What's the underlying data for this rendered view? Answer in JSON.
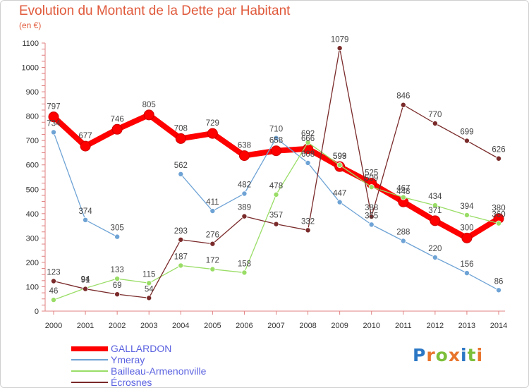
{
  "title": "Evolution du Montant de la Dette par Habitant",
  "subtitle": "(en €)",
  "logo": {
    "letters": [
      "P",
      "r",
      "o",
      "x",
      "i",
      "t",
      "i"
    ],
    "colors": [
      "#2b77c5",
      "#e8742c",
      "#7cbf3a",
      "#e8742c",
      "#2b77c5",
      "#7cbf3a",
      "#e8742c"
    ]
  },
  "chart_data": {
    "type": "line",
    "title": "Evolution du Montant de la Dette par Habitant",
    "ylabel": "(en €)",
    "ylim": [
      0,
      1100
    ],
    "yticks": [
      0,
      100,
      200,
      300,
      400,
      500,
      600,
      700,
      800,
      900,
      1000,
      1100
    ],
    "grid": false,
    "legend_position": "bottom-left",
    "x": [
      "2000",
      "2001",
      "2002",
      "2003",
      "2004",
      "2005",
      "2006",
      "2007",
      "2008",
      "2009",
      "2010",
      "2011",
      "2012",
      "2013",
      "2014"
    ],
    "series": [
      {
        "name": "GALLARDON",
        "color": "#ff0000",
        "values": [
          797,
          677,
          746,
          805,
          708,
          729,
          638,
          658,
          666,
          593,
          525,
          448,
          371,
          300,
          380
        ]
      },
      {
        "name": "Ymeray",
        "color": "#6ea3d5",
        "values": [
          734,
          374,
          305,
          null,
          562,
          411,
          482,
          710,
          608,
          447,
          355,
          288,
          220,
          156,
          86
        ]
      },
      {
        "name": "Bailleau-Armenonville",
        "color": "#99dd66",
        "values": [
          46,
          94,
          133,
          115,
          187,
          172,
          158,
          478,
          692,
          599,
          509,
          467,
          434,
          394,
          360
        ]
      },
      {
        "name": "Écrosnes",
        "color": "#7a2a2a",
        "values": [
          123,
          91,
          69,
          54,
          293,
          276,
          389,
          357,
          332,
          1079,
          388,
          846,
          770,
          699,
          626
        ]
      }
    ]
  }
}
